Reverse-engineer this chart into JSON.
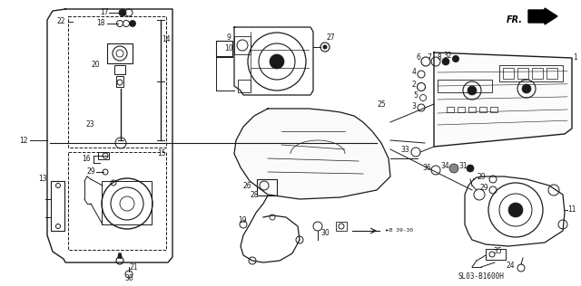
{
  "background_color": "#ffffff",
  "diagram_code": "SL03-B1600H",
  "fig_width": 6.4,
  "fig_height": 3.16,
  "dpi": 100,
  "line_color": "#1a1a1a",
  "label_fontsize": 5.5,
  "label_color": "#1a1a1a"
}
